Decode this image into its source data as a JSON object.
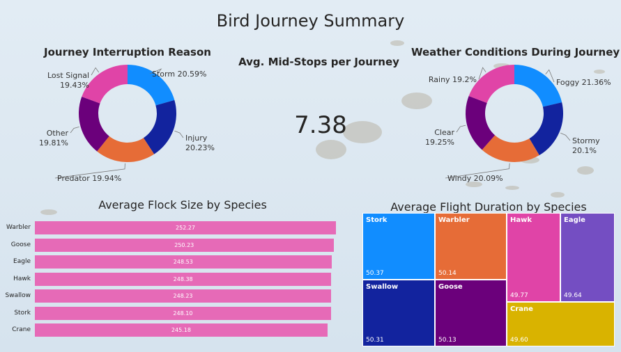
{
  "title": "Bird Journey Summary",
  "kpi": {
    "title": "Avg. Mid-Stops per Journey",
    "value": "7.38"
  },
  "colors": {
    "blue": "#118dff",
    "navy": "#12239e",
    "orange": "#e66c37",
    "purple": "#6b007b",
    "pink": "#e044a7",
    "violet": "#744ec2",
    "gold": "#d9b300",
    "bar": "#e66ab7"
  },
  "chart_data": [
    {
      "id": "interruption",
      "type": "pie",
      "title": "Journey Interruption Reason",
      "slices": [
        {
          "name": "Storm",
          "value": 20.59,
          "label": "Storm 20.59%",
          "color": "#118dff"
        },
        {
          "name": "Injury",
          "value": 20.23,
          "label": "Injury 20.23%",
          "color": "#12239e"
        },
        {
          "name": "Predator",
          "value": 19.94,
          "label": "Predator 19.94%",
          "color": "#e66c37"
        },
        {
          "name": "Other",
          "value": 19.81,
          "label": "Other 19.81%",
          "color": "#6b007b"
        },
        {
          "name": "Lost Signal",
          "value": 19.43,
          "label": "Lost Signal 19.43%",
          "color": "#e044a7"
        }
      ]
    },
    {
      "id": "weather",
      "type": "pie",
      "title": "Weather Conditions During Journey",
      "slices": [
        {
          "name": "Foggy",
          "value": 21.36,
          "label": "Foggy 21.36%",
          "color": "#118dff"
        },
        {
          "name": "Stormy",
          "value": 20.1,
          "label": "Stormy 20.1%",
          "color": "#12239e"
        },
        {
          "name": "Windy",
          "value": 20.09,
          "label": "Windy 20.09%",
          "color": "#e66c37"
        },
        {
          "name": "Clear",
          "value": 19.25,
          "label": "Clear 19.25%",
          "color": "#6b007b"
        },
        {
          "name": "Rainy",
          "value": 19.2,
          "label": "Rainy 19.2%",
          "color": "#e044a7"
        }
      ]
    },
    {
      "id": "flock",
      "type": "bar",
      "orientation": "horizontal",
      "title": "Average Flock Size by Species",
      "categories": [
        "Warbler",
        "Goose",
        "Eagle",
        "Hawk",
        "Swallow",
        "Stork",
        "Crane"
      ],
      "values": [
        252.27,
        250.23,
        248.53,
        248.38,
        248.23,
        248.1,
        245.18
      ],
      "value_labels": [
        "252.27",
        "250.23",
        "248.53",
        "248.38",
        "248.23",
        "248.10",
        "245.18"
      ],
      "xlim": [
        0,
        260
      ]
    },
    {
      "id": "duration",
      "type": "treemap",
      "title": "Average Flight Duration by Species",
      "tiles": [
        {
          "name": "Stork",
          "value": 50.37,
          "label": "50.37",
          "color": "#118dff"
        },
        {
          "name": "Warbler",
          "value": 50.14,
          "label": "50.14",
          "color": "#e66c37"
        },
        {
          "name": "Hawk",
          "value": 49.77,
          "label": "49.77",
          "color": "#e044a7"
        },
        {
          "name": "Eagle",
          "value": 49.64,
          "label": "49.64",
          "color": "#744ec2"
        },
        {
          "name": "Swallow",
          "value": 50.31,
          "label": "50.31",
          "color": "#12239e"
        },
        {
          "name": "Goose",
          "value": 50.13,
          "label": "50.13",
          "color": "#6b007b"
        },
        {
          "name": "Crane",
          "value": 49.6,
          "label": "49.60",
          "color": "#d9b300"
        }
      ]
    }
  ]
}
